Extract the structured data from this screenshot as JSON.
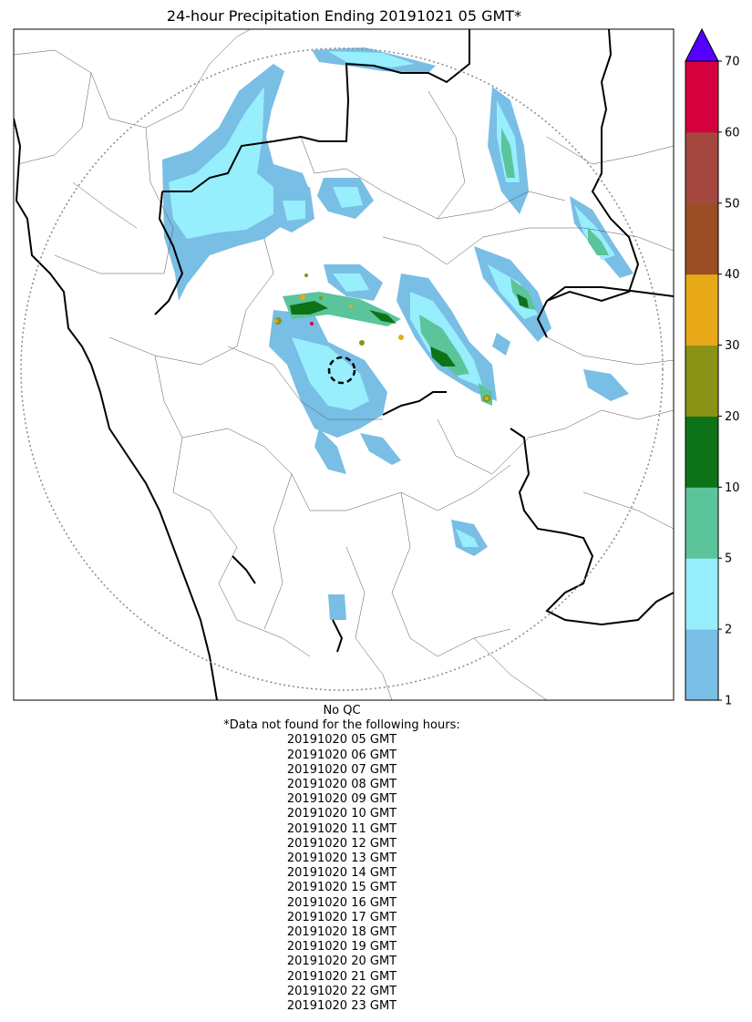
{
  "title": "24-hour Precipitation Ending 20191021 05 GMT*",
  "qc_note": "No QC",
  "missing_header": "*Data not found for the following hours:",
  "missing_hours": [
    "20191020 05 GMT",
    "20191020 06 GMT",
    "20191020 07 GMT",
    "20191020 08 GMT",
    "20191020 09 GMT",
    "20191020 10 GMT",
    "20191020 11 GMT",
    "20191020 12 GMT",
    "20191020 13 GMT",
    "20191020 14 GMT",
    "20191020 15 GMT",
    "20191020 16 GMT",
    "20191020 17 GMT",
    "20191020 18 GMT",
    "20191020 19 GMT",
    "20191020 20 GMT",
    "20191020 21 GMT",
    "20191020 22 GMT",
    "20191020 23 GMT"
  ],
  "colorbar": {
    "ticks": [
      "1",
      "2",
      "5",
      "10",
      "20",
      "30",
      "40",
      "50",
      "60",
      "70"
    ],
    "colors": [
      "#79bee4",
      "#97eefd",
      "#5cc49a",
      "#0e7318",
      "#8b9316",
      "#e8a919",
      "#9b4d26",
      "#a4483f",
      "#d5003e"
    ],
    "extend_color": "#5500ff"
  },
  "map_colors": {
    "light_blue": "#79bee4",
    "cyan": "#97eefd",
    "green": "#5cc49a",
    "dark_green": "#0e7318",
    "olive": "#8b9316",
    "orange": "#e8a919",
    "red": "#d5003e"
  }
}
